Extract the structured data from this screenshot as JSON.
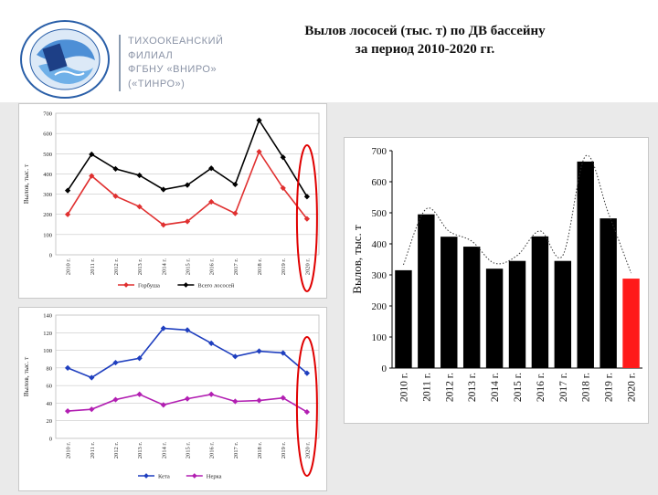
{
  "header": {
    "org_lines": [
      "ТИХООКЕАНСКИЙ",
      "ФИЛИАЛ",
      "ФГБНУ «ВНИРО»",
      "(«ТИНРО»)"
    ],
    "title_lines": [
      "Вылов лососей (тыс. т) по ДВ бассейну",
      "за период 2010-2020 гг."
    ]
  },
  "colors": {
    "black": "#000000",
    "red": "#e03030",
    "blue": "#1f3fbf",
    "magenta": "#b21fb2",
    "highlight": "#e00000",
    "bar_highlight": "#ff1a1a"
  },
  "chart_data": [
    {
      "type": "line",
      "categories": [
        "2010 г.",
        "2011 г.",
        "2012 г.",
        "2013 г.",
        "2014 г.",
        "2015 г.",
        "2016 г.",
        "2017 г.",
        "2018 г.",
        "2019 г.",
        "2020 г."
      ],
      "ylabel": "Вылов, тыс. т",
      "ylim": [
        0,
        700
      ],
      "yticks": [
        0,
        100,
        200,
        300,
        400,
        500,
        600,
        700
      ],
      "legend_position": "bottom",
      "series": [
        {
          "name": "Горбуша",
          "color": "#e03030",
          "values": [
            200,
            390,
            290,
            238,
            148,
            165,
            262,
            205,
            510,
            330,
            178
          ]
        },
        {
          "name": "Всего лососей",
          "color": "#000000",
          "values": [
            318,
            497,
            425,
            393,
            323,
            345,
            428,
            348,
            665,
            482,
            288
          ]
        }
      ]
    },
    {
      "type": "line",
      "categories": [
        "2010 г.",
        "2011 г.",
        "2012 г.",
        "2013 г.",
        "2014 г.",
        "2015 г.",
        "2016 г.",
        "2017 г.",
        "2018 г.",
        "2019 г.",
        "2020 г."
      ],
      "ylabel": "Вылов, тыс. т",
      "ylim": [
        0,
        140
      ],
      "yticks": [
        0,
        20,
        40,
        60,
        80,
        100,
        120,
        140
      ],
      "legend_position": "bottom",
      "series": [
        {
          "name": "Кета",
          "color": "#1f3fbf",
          "values": [
            80,
            69,
            86,
            91,
            125,
            123,
            108,
            93,
            99,
            97,
            74
          ]
        },
        {
          "name": "Нерка",
          "color": "#b21fb2",
          "values": [
            31,
            33,
            44,
            50,
            38,
            45,
            50,
            42,
            43,
            46,
            30
          ]
        }
      ]
    },
    {
      "type": "bar",
      "categories": [
        "2010 г.",
        "2011 г.",
        "2012 г.",
        "2013 г.",
        "2014 г.",
        "2015 г.",
        "2016 г.",
        "2017 г.",
        "2018 г.",
        "2019 г.",
        "2020 г."
      ],
      "values": [
        315,
        495,
        423,
        391,
        320,
        345,
        424,
        345,
        665,
        482,
        288
      ],
      "ylabel": "Вылов, тыс. т",
      "ylim": [
        0,
        700
      ],
      "yticks": [
        0,
        100,
        200,
        300,
        400,
        500,
        600,
        700
      ],
      "highlight_last": true,
      "trendline": "dotted"
    }
  ]
}
